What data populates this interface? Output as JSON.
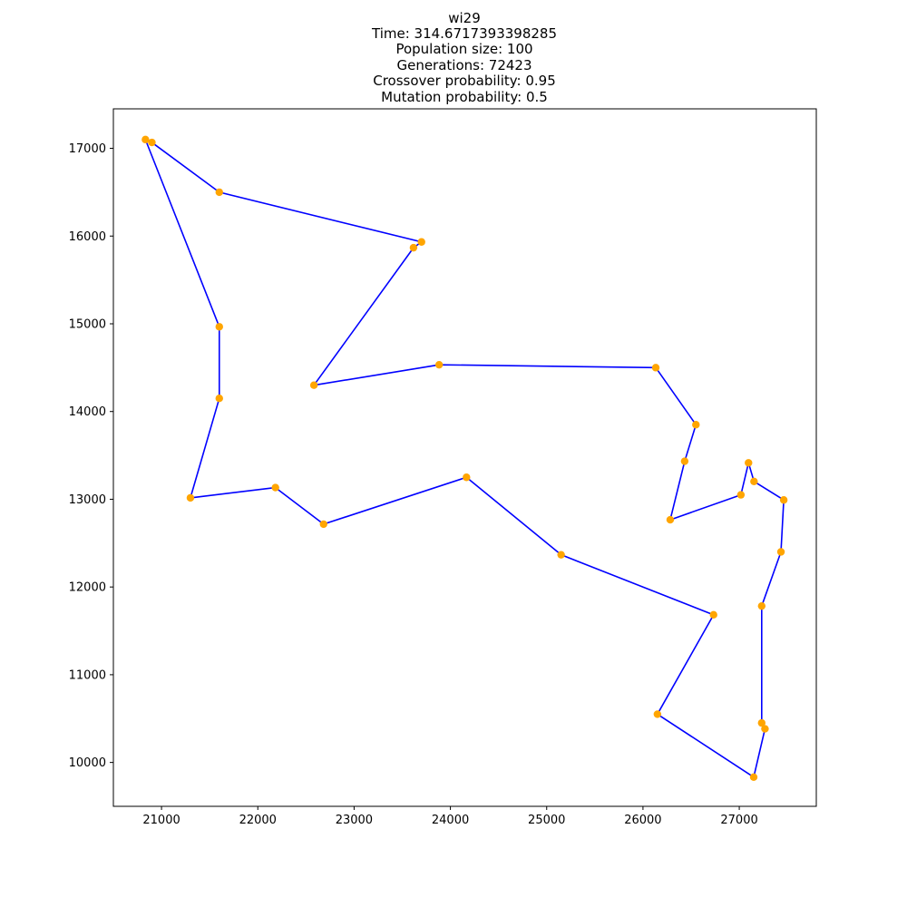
{
  "chart_data": {
    "type": "scatter",
    "title_lines": [
      "wi29",
      "Time: 314.6717393398285",
      "Population size: 100",
      "Generations: 72423",
      "Crossover probability: 0.95",
      "Mutation probability: 0.5"
    ],
    "xlabel": "",
    "ylabel": "",
    "xlim": [
      20500,
      27800
    ],
    "ylim": [
      9500,
      17450
    ],
    "xticks": [
      21000,
      22000,
      23000,
      24000,
      25000,
      26000,
      27000
    ],
    "yticks": [
      10000,
      11000,
      12000,
      13000,
      14000,
      15000,
      16000,
      17000
    ],
    "grid": false,
    "legend": "none",
    "colors": {
      "points": "#ffa500",
      "route": "#0000ff"
    },
    "route_closed": true,
    "series": [
      {
        "values": [
          [
            20833,
            17100
          ],
          [
            20900,
            17067
          ],
          [
            21600,
            16500
          ],
          [
            23700,
            15933
          ],
          [
            23617,
            15867
          ],
          [
            22583,
            14300
          ],
          [
            23883,
            14533
          ],
          [
            26133,
            14500
          ],
          [
            26550,
            13850
          ],
          [
            26433,
            13433
          ],
          [
            26283,
            12766
          ],
          [
            27017,
            13050
          ],
          [
            27096,
            13415
          ],
          [
            27153,
            13203
          ],
          [
            27462,
            12992
          ],
          [
            27433,
            12400
          ],
          [
            27233,
            11783
          ],
          [
            27233,
            10450
          ],
          [
            27267,
            10383
          ],
          [
            27150,
            9833
          ],
          [
            26150,
            10550
          ],
          [
            26733,
            11683
          ],
          [
            25150,
            12367
          ],
          [
            24167,
            13250
          ],
          [
            22683,
            12716
          ],
          [
            22183,
            13133
          ],
          [
            21300,
            13016
          ],
          [
            21600,
            14150
          ],
          [
            21600,
            14966
          ]
        ]
      }
    ]
  }
}
